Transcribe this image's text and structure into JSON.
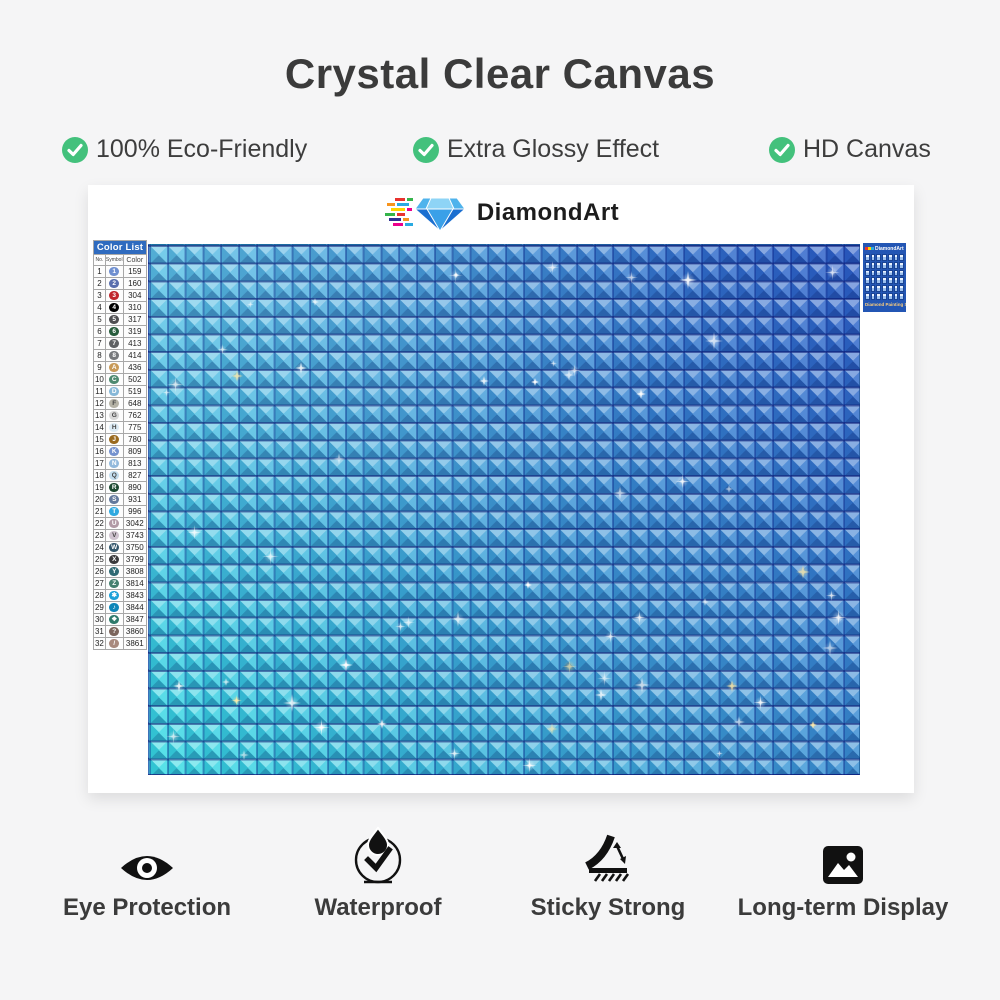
{
  "title": "Crystal Clear Canvas",
  "accent_green": "#43c17c",
  "features": [
    {
      "label": "100% Eco-Friendly"
    },
    {
      "label": "Extra Glossy Effect"
    },
    {
      "label": "HD Canvas"
    }
  ],
  "brand": {
    "name": "DiamondArt"
  },
  "color_list": {
    "header": "Color List",
    "columns": [
      "No.",
      "Symbol",
      "Color"
    ],
    "rows": [
      {
        "no": "1",
        "symbol": "1",
        "code": "159",
        "swatch": "#6f8fd0",
        "ink": "#ffffff"
      },
      {
        "no": "2",
        "symbol": "2",
        "code": "160",
        "swatch": "#5a6fae",
        "ink": "#ffffff"
      },
      {
        "no": "3",
        "symbol": "3",
        "code": "304",
        "swatch": "#c0272d",
        "ink": "#ffffff"
      },
      {
        "no": "4",
        "symbol": "4",
        "code": "310",
        "swatch": "#000000",
        "ink": "#ffffff"
      },
      {
        "no": "5",
        "symbol": "5",
        "code": "317",
        "swatch": "#4f4f52",
        "ink": "#ffffff"
      },
      {
        "no": "6",
        "symbol": "6",
        "code": "319",
        "swatch": "#275c3c",
        "ink": "#ffffff"
      },
      {
        "no": "7",
        "symbol": "7",
        "code": "413",
        "swatch": "#5f6163",
        "ink": "#ffffff"
      },
      {
        "no": "8",
        "symbol": "8",
        "code": "414",
        "swatch": "#77797c",
        "ink": "#ffffff"
      },
      {
        "no": "9",
        "symbol": "A",
        "code": "436",
        "swatch": "#c89a58",
        "ink": "#ffffff"
      },
      {
        "no": "10",
        "symbol": "C",
        "code": "502",
        "swatch": "#4e8a70",
        "ink": "#ffffff"
      },
      {
        "no": "11",
        "symbol": "D",
        "code": "519",
        "swatch": "#86b8d8",
        "ink": "#ffffff"
      },
      {
        "no": "12",
        "symbol": "F",
        "code": "648",
        "swatch": "#b6b3a6",
        "ink": "#444444"
      },
      {
        "no": "13",
        "symbol": "G",
        "code": "762",
        "swatch": "#d8d8d8",
        "ink": "#444444"
      },
      {
        "no": "14",
        "symbol": "H",
        "code": "775",
        "swatch": "#dcebf5",
        "ink": "#444444"
      },
      {
        "no": "15",
        "symbol": "J",
        "code": "780",
        "swatch": "#9a6a1f",
        "ink": "#ffffff"
      },
      {
        "no": "16",
        "symbol": "K",
        "code": "809",
        "swatch": "#7492cf",
        "ink": "#ffffff"
      },
      {
        "no": "17",
        "symbol": "N",
        "code": "813",
        "swatch": "#92b9dc",
        "ink": "#ffffff"
      },
      {
        "no": "18",
        "symbol": "Q",
        "code": "827",
        "swatch": "#c3ddee",
        "ink": "#444444"
      },
      {
        "no": "19",
        "symbol": "R",
        "code": "890",
        "swatch": "#1d4a31",
        "ink": "#ffffff"
      },
      {
        "no": "20",
        "symbol": "S",
        "code": "931",
        "swatch": "#64799c",
        "ink": "#ffffff"
      },
      {
        "no": "21",
        "symbol": "T",
        "code": "996",
        "swatch": "#2fa9e0",
        "ink": "#ffffff"
      },
      {
        "no": "22",
        "symbol": "U",
        "code": "3042",
        "swatch": "#b29aa6",
        "ink": "#ffffff"
      },
      {
        "no": "23",
        "symbol": "V",
        "code": "3743",
        "swatch": "#cfc3cf",
        "ink": "#444444"
      },
      {
        "no": "24",
        "symbol": "W",
        "code": "3750",
        "swatch": "#32566b",
        "ink": "#ffffff"
      },
      {
        "no": "25",
        "symbol": "X",
        "code": "3799",
        "swatch": "#3a3a3c",
        "ink": "#ffffff"
      },
      {
        "no": "26",
        "symbol": "Y",
        "code": "3808",
        "swatch": "#2f6a74",
        "ink": "#ffffff"
      },
      {
        "no": "27",
        "symbol": "Z",
        "code": "3814",
        "swatch": "#45806f",
        "ink": "#ffffff"
      },
      {
        "no": "28",
        "symbol": "✱",
        "code": "3843",
        "swatch": "#1ba0d8",
        "ink": "#ffffff"
      },
      {
        "no": "29",
        "symbol": "♪",
        "code": "3844",
        "swatch": "#0f86b8",
        "ink": "#ffffff"
      },
      {
        "no": "30",
        "symbol": "❖",
        "code": "3847",
        "swatch": "#2f7a6b",
        "ink": "#ffffff"
      },
      {
        "no": "31",
        "symbol": "?",
        "code": "3860",
        "swatch": "#7b655c",
        "ink": "#ffffff"
      },
      {
        "no": "32",
        "symbol": "/",
        "code": "3861",
        "swatch": "#a8897d",
        "ink": "#ffffff"
      }
    ]
  },
  "canvas": {
    "gradient_top_right": "#2d5ec8",
    "gradient_bottom_left": "#38dfe5"
  },
  "tag": {
    "brand": "DiamondArt",
    "caption": "Diamond Painting Set"
  },
  "bottom_features": [
    {
      "icon": "eye-icon",
      "label": "Eye Protection"
    },
    {
      "icon": "waterproof-icon",
      "label": "Waterproof"
    },
    {
      "icon": "sticky-strong-icon",
      "label": "Sticky Strong"
    },
    {
      "icon": "long-term-display-icon",
      "label": "Long-term Display"
    }
  ]
}
